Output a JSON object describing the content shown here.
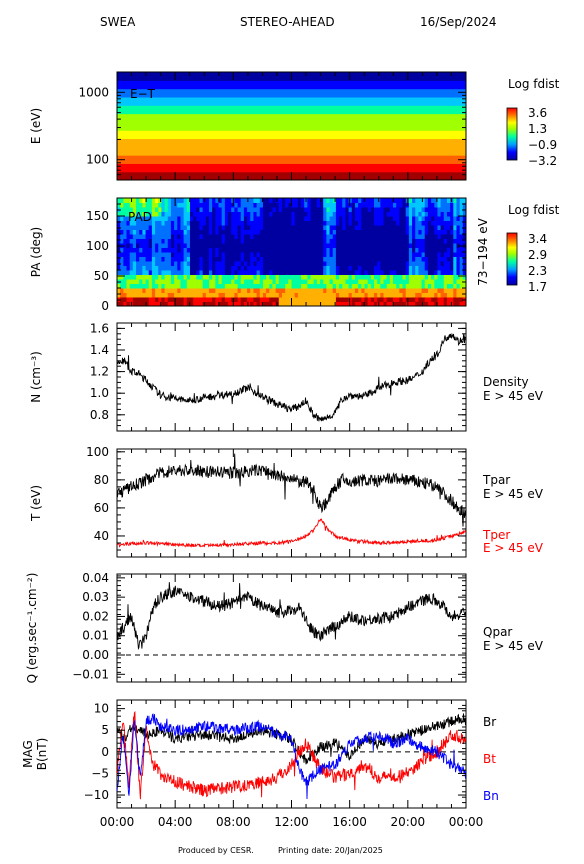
{
  "header": {
    "instrument": "SWEA",
    "spacecraft": "STEREO-AHEAD",
    "date": "16/Sep/2024"
  },
  "footer": {
    "produced": "Produced by CESR.",
    "printing": "Printing date: 20/Jan/2025"
  },
  "colors": {
    "black": "#000000",
    "red": "#ff0000",
    "blue": "#0000ff",
    "spectrum": [
      "#0000a0",
      "#0000ff",
      "#0070ff",
      "#00c8ff",
      "#00ffa0",
      "#a0ff00",
      "#ffff00",
      "#ffb000",
      "#ff6000",
      "#ff0000",
      "#a00000"
    ]
  },
  "chart_data": [
    {
      "id": "et",
      "type": "heatmap",
      "panel_label": "E−T",
      "ylabel": "E (eV)",
      "yscale": "log",
      "yticks": [
        "100",
        "1000"
      ],
      "ylim": [
        50,
        2000
      ],
      "colorbar": {
        "title": "Log fdist",
        "ticks": [
          "3.6",
          "1.3",
          "−0.9",
          "−3.2"
        ],
        "range": [
          -3.2,
          3.6
        ]
      },
      "bands_log_fdist_low_to_high_energy": [
        3.4,
        3.0,
        2.4,
        1.9,
        1.3,
        0.9,
        0.4,
        -0.1,
        -0.6,
        -1.2,
        -1.8,
        -2.4,
        -3.0
      ]
    },
    {
      "id": "pad",
      "type": "heatmap",
      "panel_label": "PAD",
      "ylabel": "PA (deg)",
      "yticks": [
        "0",
        "50",
        "100",
        "150"
      ],
      "ylim": [
        0,
        180
      ],
      "energy_label": "73−194 eV",
      "colorbar": {
        "title": "Log fdist",
        "ticks": [
          "3.4",
          "2.9",
          "2.3",
          "1.7"
        ],
        "range": [
          1.7,
          3.4
        ]
      }
    },
    {
      "id": "density",
      "type": "line",
      "ylabel": "N (cm⁻³)",
      "yticks": [
        "0.8",
        "1.0",
        "1.2",
        "1.4",
        "1.6"
      ],
      "ylim": [
        0.65,
        1.65
      ],
      "series": [
        {
          "name": "Density",
          "sub": "E > 45 eV",
          "color": "#000000",
          "x": [
            0,
            0.5,
            1,
            1.5,
            2,
            2.5,
            3,
            4,
            5,
            6,
            7,
            8,
            9,
            10,
            11,
            12,
            12.5,
            13,
            13.5,
            14,
            14.5,
            15,
            15.5,
            16,
            17,
            18,
            19,
            20,
            20.5,
            21,
            21.5,
            22,
            22.5,
            23,
            23.5,
            24
          ],
          "y": [
            1.28,
            1.3,
            1.2,
            1.18,
            1.12,
            1.05,
            0.98,
            0.95,
            0.93,
            0.96,
            0.98,
            1.0,
            1.05,
            0.97,
            0.9,
            0.85,
            0.88,
            0.93,
            0.8,
            0.75,
            0.78,
            0.82,
            0.95,
            0.98,
            0.97,
            1.05,
            1.1,
            1.12,
            1.15,
            1.2,
            1.3,
            1.35,
            1.5,
            1.55,
            1.48,
            1.5
          ],
          "noise": 0.035
        }
      ]
    },
    {
      "id": "temperature",
      "type": "line",
      "ylabel": "T (eV)",
      "yticks": [
        "40",
        "60",
        "80",
        "100"
      ],
      "ylim": [
        25,
        102
      ],
      "series": [
        {
          "name": "Tpar",
          "sub": "E > 45 eV",
          "color": "#000000",
          "x": [
            0,
            1,
            2,
            3,
            4,
            6,
            8,
            10,
            11,
            11.5,
            12,
            13,
            13.5,
            14,
            14.5,
            15,
            15.5,
            16,
            17,
            18,
            19,
            20,
            21,
            22,
            22.5,
            23,
            23.5,
            24
          ],
          "y": [
            70,
            75,
            80,
            85,
            87,
            86,
            85,
            87,
            83,
            82,
            80,
            78,
            74,
            60,
            65,
            75,
            80,
            78,
            80,
            79,
            81,
            80,
            78,
            75,
            70,
            65,
            60,
            55
          ],
          "noise": 4.5
        },
        {
          "name": "Tper",
          "sub": "E > 45 eV",
          "color": "#ff0000",
          "x": [
            0,
            2,
            4,
            6,
            8,
            10,
            11,
            12,
            12.5,
            13,
            13.5,
            14,
            14.5,
            15,
            16,
            17,
            18,
            20,
            22,
            23,
            24
          ],
          "y": [
            34,
            35,
            34,
            33,
            34,
            35,
            35,
            36,
            38,
            40,
            44,
            52,
            45,
            40,
            37,
            36,
            35,
            36,
            37,
            40,
            43
          ],
          "noise": 1.2
        }
      ]
    },
    {
      "id": "heatflux",
      "type": "line",
      "ylabel": "Q (erg.sec⁻¹.cm⁻²)",
      "yticks": [
        "−0.01",
        "0.00",
        "0.01",
        "0.02",
        "0.03",
        "0.04"
      ],
      "ylim": [
        -0.014,
        0.042
      ],
      "zero_line": true,
      "series": [
        {
          "name": "Qpar",
          "sub": "E > 45 eV",
          "color": "#000000",
          "x": [
            0,
            0.5,
            1,
            1.5,
            2,
            2.5,
            3,
            4,
            5,
            6,
            7,
            8,
            9,
            10,
            11,
            12,
            12.5,
            13,
            13.5,
            14,
            15,
            16,
            17,
            18,
            19,
            20,
            21,
            21.5,
            22,
            22.5,
            23,
            24
          ],
          "y": [
            0.01,
            0.015,
            0.02,
            0.005,
            0.01,
            0.025,
            0.03,
            0.033,
            0.03,
            0.028,
            0.025,
            0.027,
            0.03,
            0.025,
            0.022,
            0.023,
            0.025,
            0.018,
            0.012,
            0.01,
            0.015,
            0.02,
            0.018,
            0.019,
            0.02,
            0.025,
            0.028,
            0.03,
            0.028,
            0.025,
            0.02,
            0.022
          ],
          "noise": 0.003
        }
      ]
    },
    {
      "id": "mag",
      "type": "line",
      "ylabel": "MAG B(nT)",
      "yticks": [
        "−10",
        "−5",
        "0",
        "5",
        "10"
      ],
      "ylim": [
        -13,
        12
      ],
      "zero_line": true,
      "xlabel": "",
      "xticks": [
        "00:00",
        "04:00",
        "08:00",
        "12:00",
        "16:00",
        "20:00",
        "00:00"
      ],
      "xlim": [
        0,
        24
      ],
      "series": [
        {
          "name": "Br",
          "color": "#000000",
          "x": [
            0,
            0.5,
            1,
            2,
            3,
            4,
            6,
            8,
            10,
            11,
            12,
            12.5,
            13,
            14,
            15,
            16,
            17,
            18,
            19,
            20,
            21,
            22,
            23,
            24
          ],
          "y": [
            5,
            3,
            6,
            4,
            5,
            3,
            4,
            3,
            5,
            4,
            3,
            0,
            -2,
            1,
            2,
            -1,
            3,
            2,
            3,
            4,
            5,
            6,
            7,
            8
          ],
          "noise": 1.2
        },
        {
          "name": "Bt",
          "color": "#ff0000",
          "x": [
            0,
            0.4,
            0.8,
            1.2,
            1.6,
            2,
            2.5,
            3,
            4,
            5,
            6,
            8,
            10,
            11,
            12,
            12.5,
            13,
            13.5,
            14,
            15,
            16,
            17,
            18,
            20,
            21,
            22,
            23,
            24
          ],
          "y": [
            -5,
            8,
            -8,
            10,
            -10,
            5,
            -3,
            -5,
            -7,
            -8,
            -9,
            -8,
            -7,
            -6,
            -3,
            0,
            2,
            -1,
            -4,
            -6,
            -5,
            -3,
            -6,
            -5,
            -2,
            0,
            4,
            3
          ],
          "noise": 1.5
        },
        {
          "name": "Bn",
          "color": "#0000ff",
          "x": [
            0,
            0.4,
            0.8,
            1.2,
            1.6,
            2,
            2.5,
            3,
            4,
            5,
            6,
            8,
            10,
            11,
            12,
            12.5,
            13,
            14,
            15,
            16,
            17,
            18,
            19,
            20,
            21,
            22,
            23,
            24
          ],
          "y": [
            -9,
            5,
            -10,
            8,
            -6,
            7,
            8,
            6,
            5,
            5,
            6,
            5,
            6,
            4,
            3,
            -4,
            -7,
            -4,
            -3,
            2,
            3,
            4,
            2,
            3,
            1,
            0,
            -3,
            -5
          ],
          "noise": 1.3
        }
      ]
    }
  ]
}
